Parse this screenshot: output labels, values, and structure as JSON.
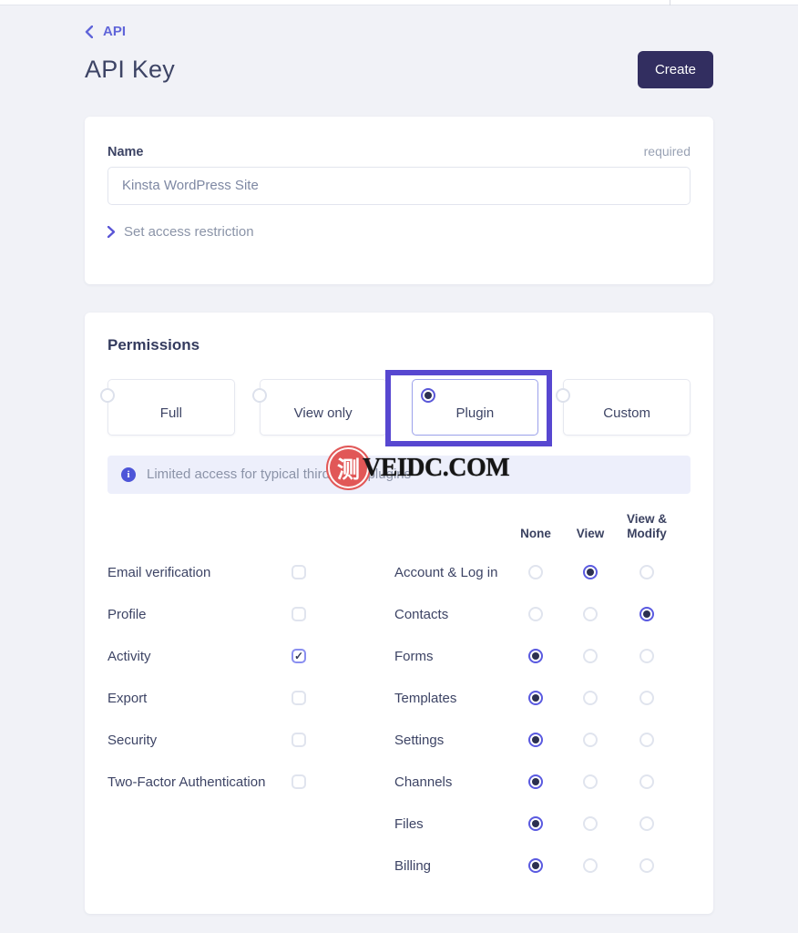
{
  "header": {
    "back_label": "API",
    "title": "API Key",
    "create_label": "Create"
  },
  "name_card": {
    "label": "Name",
    "required_label": "required",
    "input_value": "Kinsta WordPress Site",
    "restriction_label": "Set access restriction"
  },
  "permissions_card": {
    "title": "Permissions",
    "options": [
      {
        "label": "Full",
        "selected": false,
        "highlighted": false
      },
      {
        "label": "View only",
        "selected": false,
        "highlighted": false
      },
      {
        "label": "Plugin",
        "selected": true,
        "highlighted": true
      },
      {
        "label": "Custom",
        "selected": false,
        "highlighted": false
      }
    ],
    "info_text": "Limited access for typical third party plugins",
    "columns": [
      "None",
      "View",
      "View & Modify"
    ],
    "checkbox_rows": [
      {
        "label": "Email verification",
        "checked": false
      },
      {
        "label": "Profile",
        "checked": false
      },
      {
        "label": "Activity",
        "checked": true
      },
      {
        "label": "Export",
        "checked": false
      },
      {
        "label": "Security",
        "checked": false
      },
      {
        "label": "Two-Factor Authentication",
        "checked": false
      }
    ],
    "radio_rows": [
      {
        "label": "Account & Log in",
        "value": "view"
      },
      {
        "label": "Contacts",
        "value": "modify"
      },
      {
        "label": "Forms",
        "value": "none"
      },
      {
        "label": "Templates",
        "value": "none"
      },
      {
        "label": "Settings",
        "value": "none"
      },
      {
        "label": "Channels",
        "value": "none"
      },
      {
        "label": "Files",
        "value": "none"
      },
      {
        "label": "Billing",
        "value": "none"
      }
    ]
  },
  "watermark": {
    "stamp_text": "测",
    "site_text": "VEIDC.COM"
  },
  "colors": {
    "accent_purple": "#5a58d8",
    "highlight_purple": "#5747d0",
    "create_button": "#322e60",
    "info_icon": "#4d55d8",
    "page_background": "#f1f2f7"
  }
}
